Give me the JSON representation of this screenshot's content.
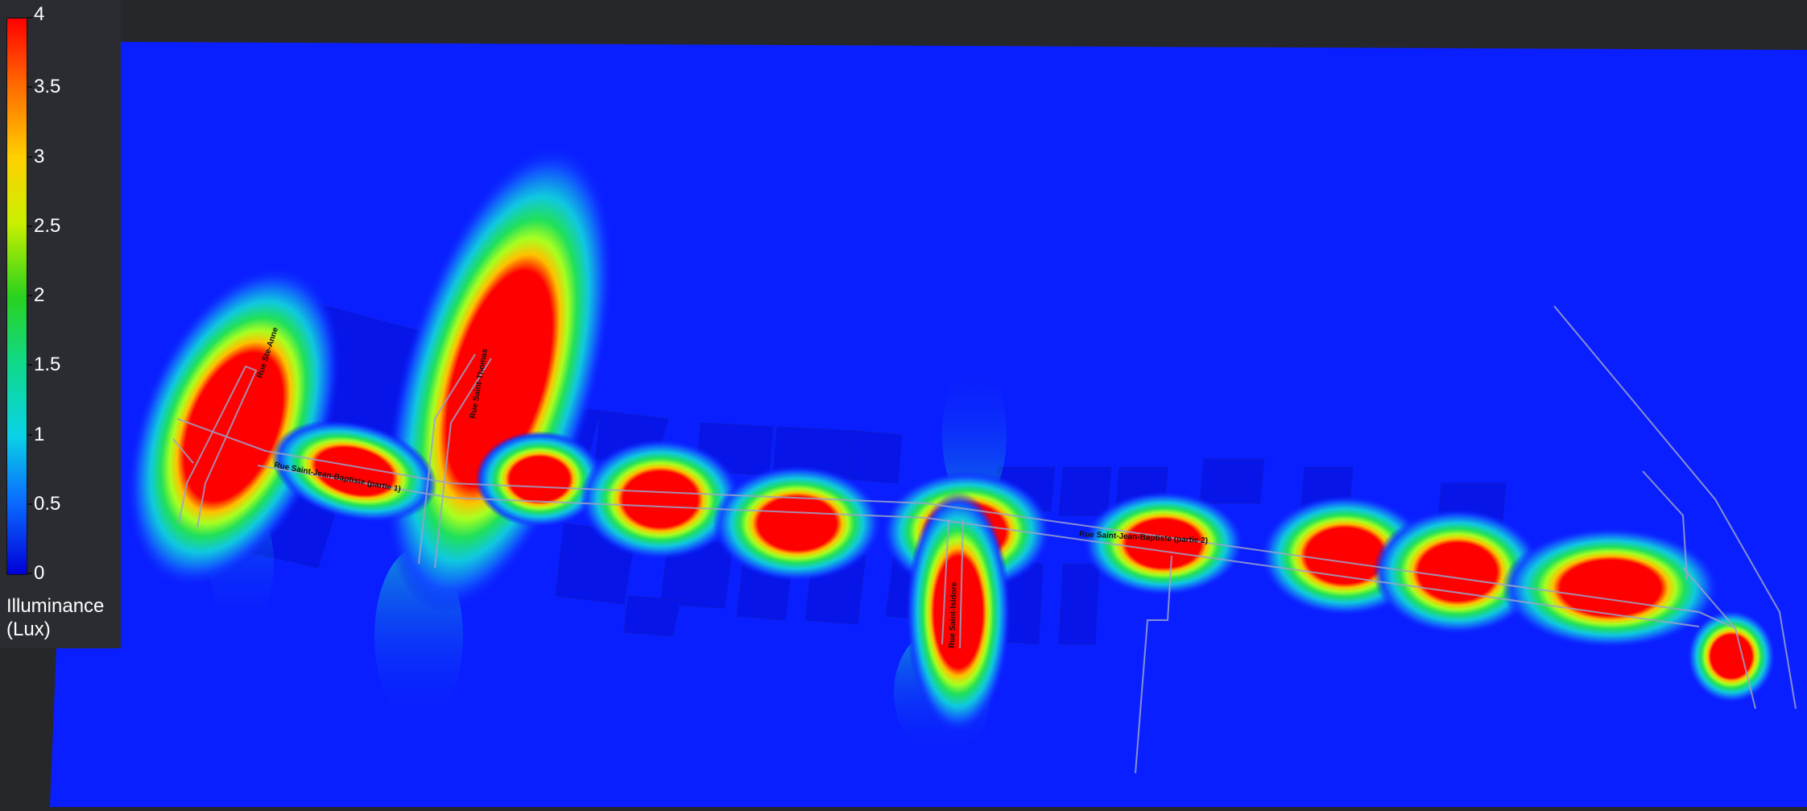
{
  "legend": {
    "title_line1": "Illuminance",
    "title_line2": "(Lux)",
    "ticks": [
      {
        "value": 4,
        "label": "4"
      },
      {
        "value": 3.5,
        "label": "3.5"
      },
      {
        "value": 3,
        "label": "3"
      },
      {
        "value": 2.5,
        "label": "2.5"
      },
      {
        "value": 2,
        "label": "2"
      },
      {
        "value": 1.5,
        "label": "1.5"
      },
      {
        "value": 1,
        "label": "1"
      },
      {
        "value": 0.5,
        "label": "0.5"
      },
      {
        "value": 0,
        "label": "0"
      }
    ],
    "scale_min": 0,
    "scale_max": 4
  },
  "streets": [
    {
      "label": "Rue Ste-Anne"
    },
    {
      "label": "Rue Saint-Thomas"
    },
    {
      "label": "Rue Saint-Jean-Baptiste (partie 1)"
    },
    {
      "label": "Rue Saint-Jean-Baptiste (partie 2)"
    },
    {
      "label": "Rue Saint-Isidore"
    }
  ],
  "colors": {
    "background": "#0a1fff",
    "high": "#ff0000",
    "panel": "#2b2c31"
  }
}
